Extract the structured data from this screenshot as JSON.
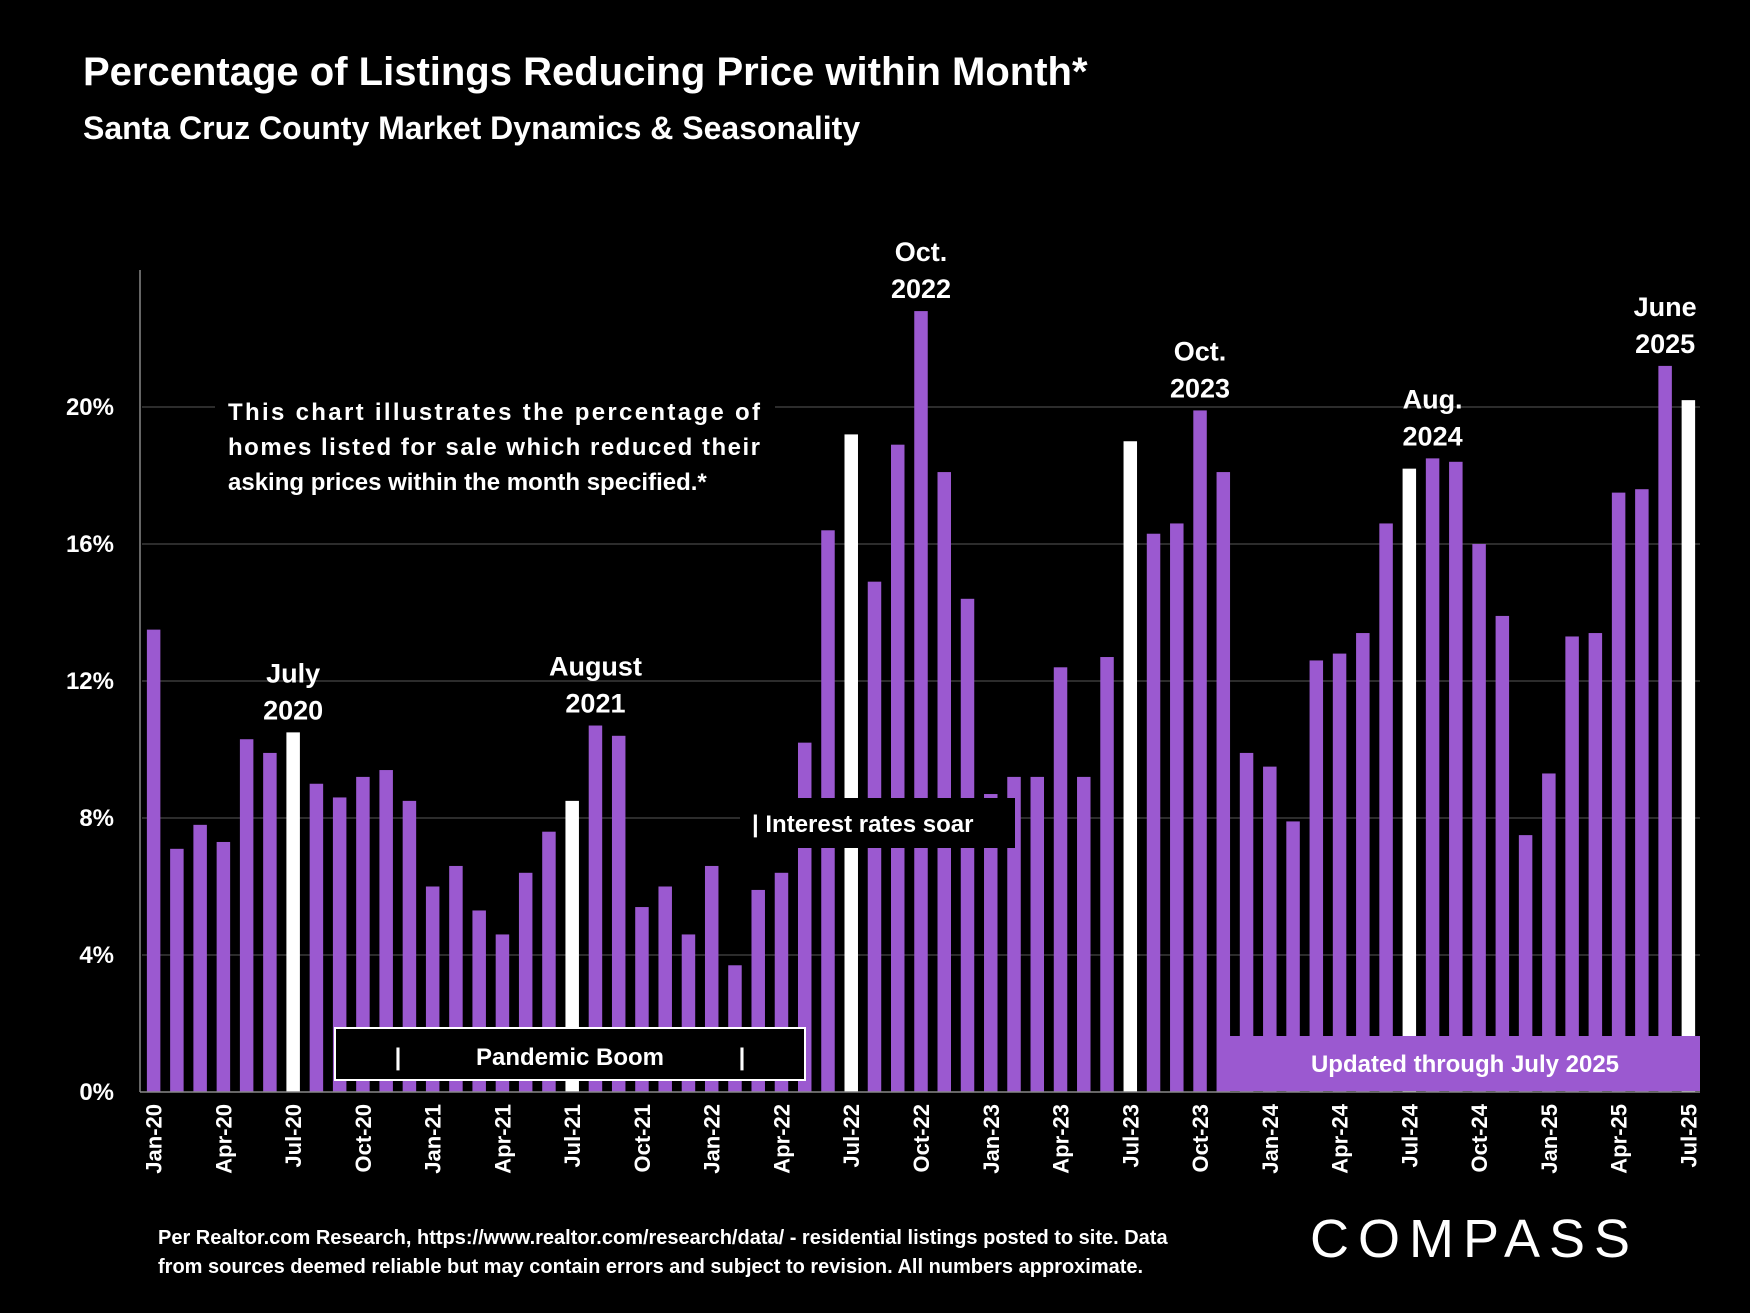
{
  "title": "Percentage of Listings Reducing Price within Month*",
  "subtitle": "Santa Cruz County Market Dynamics & Seasonality",
  "footnote": {
    "line1": "Per Realtor.com Research, https://www.realtor.com/research/data/ - residential listings posted to site.  Data",
    "line2": "from sources deemed reliable but may contain errors and subject to revision. All numbers approximate."
  },
  "logo": "COMPASS",
  "colors": {
    "bar": "#9b59d0",
    "highlight": "#ffffff",
    "background": "#000000",
    "grid": "#3a3a3a",
    "band": "#9b59d0"
  },
  "chart_data": {
    "type": "bar",
    "title": "Percentage of Listings Reducing Price within Month*",
    "ylabel": "",
    "xlabel": "",
    "ylim": [
      0,
      24
    ],
    "yticks": [
      0,
      4,
      8,
      12,
      16,
      20
    ],
    "ytick_labels": [
      "0%",
      "4%",
      "8%",
      "12%",
      "16%",
      "20%"
    ],
    "grid": true,
    "categories": [
      "Jan-20",
      "Feb-20",
      "Mar-20",
      "Apr-20",
      "May-20",
      "Jun-20",
      "Jul-20",
      "Aug-20",
      "Sep-20",
      "Oct-20",
      "Nov-20",
      "Dec-20",
      "Jan-21",
      "Feb-21",
      "Mar-21",
      "Apr-21",
      "May-21",
      "Jun-21",
      "Jul-21",
      "Aug-21",
      "Sep-21",
      "Oct-21",
      "Nov-21",
      "Dec-21",
      "Jan-22",
      "Feb-22",
      "Mar-22",
      "Apr-22",
      "May-22",
      "Jun-22",
      "Jul-22",
      "Aug-22",
      "Sep-22",
      "Oct-22",
      "Nov-22",
      "Dec-22",
      "Jan-23",
      "Feb-23",
      "Mar-23",
      "Apr-23",
      "May-23",
      "Jun-23",
      "Jul-23",
      "Aug-23",
      "Sep-23",
      "Oct-23",
      "Nov-23",
      "Dec-23",
      "Jan-24",
      "Feb-24",
      "Mar-24",
      "Apr-24",
      "May-24",
      "Jun-24",
      "Jul-24",
      "Aug-24",
      "Sep-24",
      "Oct-24",
      "Nov-24",
      "Dec-24",
      "Jan-25",
      "Feb-25",
      "Mar-25",
      "Apr-25",
      "May-25",
      "Jun-25",
      "Jul-25"
    ],
    "tick_labels": [
      "Jan-20",
      "Apr-20",
      "Jul-20",
      "Oct-20",
      "Jan-21",
      "Apr-21",
      "Jul-21",
      "Oct-21",
      "Jan-22",
      "Apr-22",
      "Jul-22",
      "Oct-22",
      "Jan-23",
      "Apr-23",
      "Jul-23",
      "Oct-23",
      "Jan-24",
      "Apr-24",
      "Jul-24",
      "Oct-24",
      "Jan-25",
      "Apr-25",
      "Jul-25"
    ],
    "values": [
      13.5,
      7.1,
      7.8,
      7.3,
      10.3,
      9.9,
      10.5,
      9.0,
      8.6,
      9.2,
      9.4,
      8.5,
      6.0,
      6.6,
      5.3,
      4.6,
      6.4,
      7.6,
      8.5,
      10.7,
      10.4,
      5.4,
      6.0,
      4.6,
      6.6,
      3.7,
      5.9,
      6.4,
      10.2,
      16.4,
      19.2,
      14.9,
      18.9,
      22.8,
      18.1,
      14.4,
      8.7,
      9.2,
      9.2,
      12.4,
      9.2,
      12.7,
      19.0,
      16.3,
      16.6,
      19.9,
      18.1,
      9.9,
      9.5,
      7.9,
      12.6,
      12.8,
      13.4,
      16.6,
      18.2,
      18.5,
      18.4,
      16.0,
      13.9,
      7.5,
      9.3,
      13.3,
      13.4,
      17.5,
      17.6,
      21.2,
      20.2
    ],
    "highlighted": [
      "Jul-20",
      "Jul-21",
      "Jul-22",
      "Jul-23",
      "Jul-24",
      "Jul-25"
    ],
    "peak_annotations": [
      {
        "category": "Jul-20",
        "line1": "July",
        "line2": "2020"
      },
      {
        "category": "Aug-21",
        "line1": "August",
        "line2": "2021"
      },
      {
        "category": "Oct-22",
        "line1": "Oct.",
        "line2": "2022"
      },
      {
        "category": "Oct-23",
        "line1": "Oct.",
        "line2": "2023"
      },
      {
        "category": "Aug-24",
        "line1": "Aug.",
        "line2": "2024"
      },
      {
        "category": "Jun-25",
        "line1": "June",
        "line2": "2025"
      }
    ],
    "description": {
      "line1": "This chart illustrates the percentage of",
      "line2": "homes listed for sale which reduced their",
      "line3": "asking prices within the month specified.*"
    },
    "callouts": {
      "pandemic_boom": "Pandemic Boom",
      "pandemic_bar": "|",
      "interest_rates": "| Interest rates soar",
      "updated": "Updated through July 2025"
    }
  }
}
